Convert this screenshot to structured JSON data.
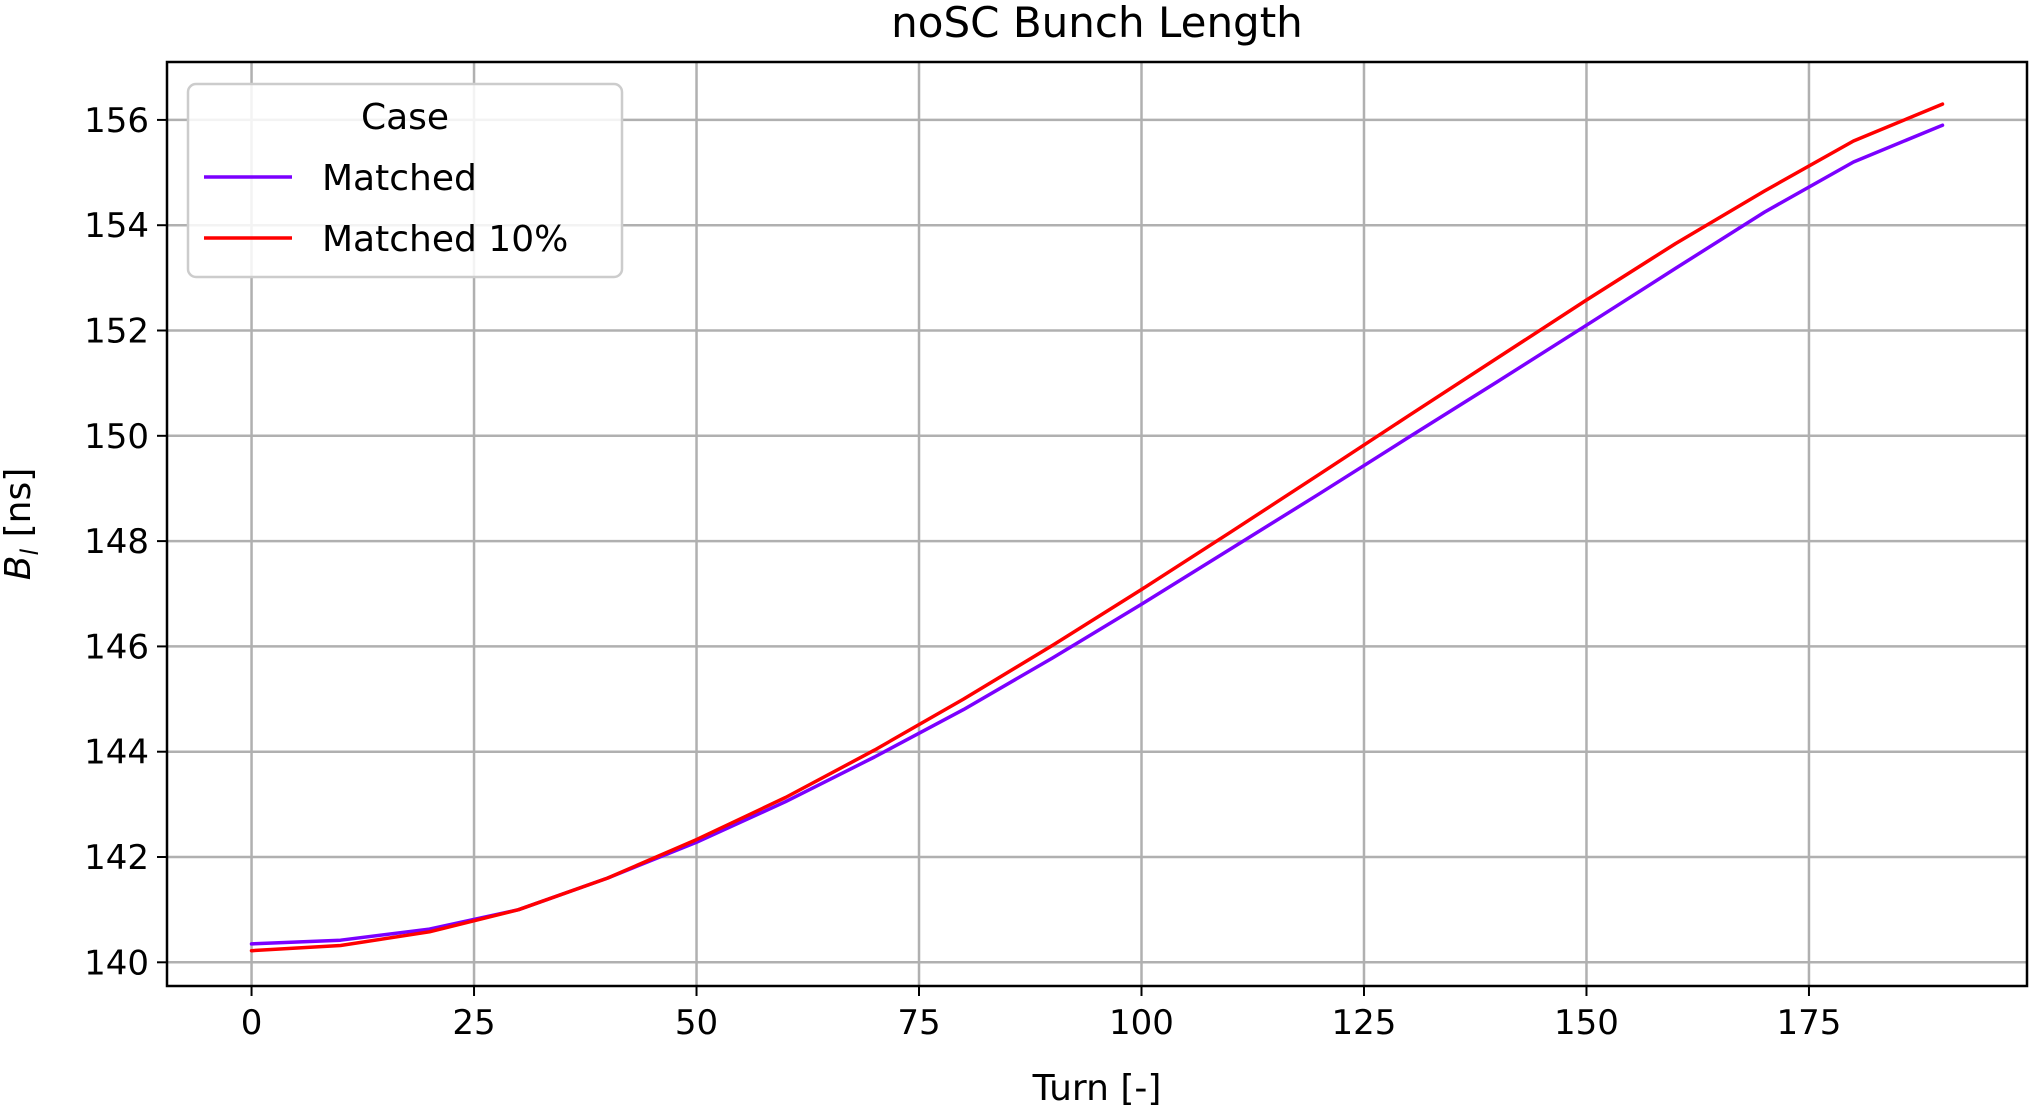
{
  "chart_data": {
    "type": "line",
    "title": "noSC Bunch Length",
    "xlabel": "Turn [-]",
    "ylabel_main": "B",
    "ylabel_sub": "l",
    "ylabel_unit": " [ns]",
    "xlim": [
      -9.5,
      199.5
    ],
    "ylim": [
      139.55,
      157.1
    ],
    "xticks": [
      0,
      25,
      50,
      75,
      100,
      125,
      150,
      175
    ],
    "yticks": [
      140,
      142,
      144,
      146,
      148,
      150,
      152,
      154,
      156
    ],
    "grid": true,
    "legend": {
      "title": "Case",
      "placement": "top-left"
    },
    "series": [
      {
        "name": "Matched",
        "color": "#7b00ff",
        "x": [
          0,
          10,
          20,
          30,
          40,
          50,
          60,
          70,
          80,
          90,
          100,
          110,
          120,
          130,
          140,
          150,
          160,
          170,
          180,
          190
        ],
        "y": [
          140.35,
          140.42,
          140.63,
          141.0,
          141.6,
          142.28,
          143.05,
          143.9,
          144.8,
          145.78,
          146.8,
          147.85,
          148.9,
          149.97,
          151.03,
          152.1,
          153.18,
          154.25,
          155.2,
          155.9
        ]
      },
      {
        "name": "Matched 10%",
        "color": "#ff0000",
        "x": [
          0,
          10,
          20,
          30,
          40,
          50,
          60,
          70,
          80,
          90,
          100,
          110,
          120,
          130,
          140,
          150,
          160,
          170,
          180,
          190
        ],
        "y": [
          140.22,
          140.32,
          140.58,
          141.0,
          141.6,
          142.33,
          143.13,
          144.03,
          145.0,
          146.02,
          147.08,
          148.17,
          149.27,
          150.38,
          151.48,
          152.58,
          153.65,
          154.65,
          155.6,
          156.3
        ]
      }
    ]
  }
}
